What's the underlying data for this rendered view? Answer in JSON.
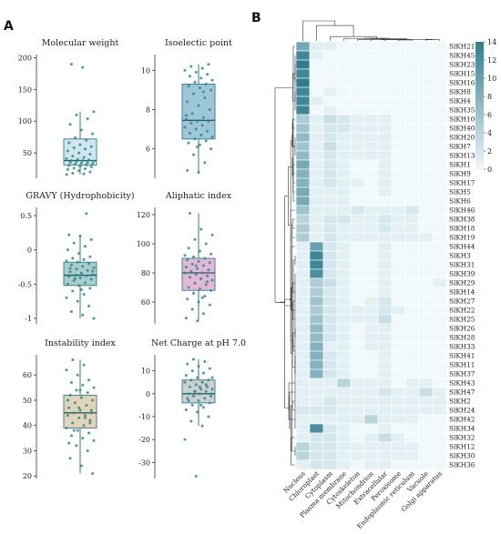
{
  "panels": {
    "a": "A",
    "b": "B"
  },
  "chart_data": [
    {
      "type": "box",
      "title": "Molecular weight",
      "ylim": [
        10,
        205
      ],
      "yticks": [
        50,
        100,
        150,
        200
      ],
      "box": {
        "q1": 31,
        "median": 38,
        "q3": 72,
        "whisker_low": 16,
        "whisker_high": 115,
        "fill": "#cfe6ef"
      },
      "points": [
        16,
        17,
        18,
        20,
        22,
        24,
        25,
        26,
        28,
        29,
        30,
        31,
        32,
        33,
        34,
        35,
        35,
        36,
        37,
        38,
        38,
        39,
        40,
        41,
        43,
        45,
        48,
        50,
        53,
        56,
        58,
        60,
        63,
        66,
        70,
        74,
        80,
        86,
        95,
        104,
        110,
        115,
        185,
        190
      ]
    },
    {
      "type": "box",
      "title": "Isoelectic point",
      "ylim": [
        4.5,
        10.8
      ],
      "yticks": [
        6,
        8,
        10
      ],
      "box": {
        "q1": 6.5,
        "median": 7.45,
        "q3": 9.3,
        "whisker_low": 4.8,
        "whisker_high": 10.3,
        "fill": "#9fc6d8"
      },
      "points": [
        4.8,
        4.9,
        5.3,
        5.7,
        6.0,
        6.2,
        6.3,
        6.4,
        6.5,
        6.6,
        6.7,
        6.8,
        6.9,
        7.0,
        7.1,
        7.2,
        7.3,
        7.4,
        7.4,
        7.5,
        7.6,
        7.8,
        8.0,
        8.2,
        8.4,
        8.6,
        8.8,
        9.0,
        9.1,
        9.2,
        9.3,
        9.4,
        9.5,
        9.6,
        9.7,
        9.8,
        9.9,
        10.0,
        10.1,
        10.2,
        10.3,
        6.1,
        7.7,
        8.9
      ]
    },
    {
      "type": "box",
      "title": "GRAVY (Hydrophobicity)",
      "ylim": [
        -1.08,
        0.62
      ],
      "yticks": [
        -1.0,
        -0.5,
        0.0,
        0.5
      ],
      "box": {
        "q1": -0.52,
        "median": -0.37,
        "q3": -0.18,
        "whisker_low": -1.0,
        "whisker_high": 0.22,
        "fill": "#aacdcc"
      },
      "points": [
        -1.0,
        -0.95,
        -0.9,
        -0.82,
        -0.75,
        -0.7,
        -0.65,
        -0.6,
        -0.56,
        -0.52,
        -0.5,
        -0.48,
        -0.45,
        -0.43,
        -0.41,
        -0.39,
        -0.38,
        -0.37,
        -0.36,
        -0.34,
        -0.32,
        -0.3,
        -0.28,
        -0.26,
        -0.24,
        -0.22,
        -0.2,
        -0.18,
        -0.16,
        -0.14,
        -0.12,
        -0.1,
        -0.05,
        0.0,
        0.05,
        0.1,
        0.15,
        0.2,
        0.22,
        0.53,
        -0.42,
        -0.31,
        -0.58,
        -0.27
      ]
    },
    {
      "type": "box",
      "title": "Aliphatic index",
      "ylim": [
        45,
        125
      ],
      "yticks": [
        60,
        80,
        100,
        120
      ],
      "box": {
        "q1": 68,
        "median": 80,
        "q3": 90,
        "whisker_low": 47,
        "whisker_high": 121,
        "fill": "#e3b8d6"
      },
      "points": [
        47,
        49,
        52,
        55,
        58,
        60,
        62,
        64,
        66,
        68,
        69,
        70,
        72,
        73,
        75,
        76,
        77,
        78,
        79,
        80,
        80,
        81,
        82,
        83,
        84,
        85,
        86,
        87,
        88,
        89,
        90,
        91,
        93,
        95,
        97,
        100,
        103,
        106,
        110,
        121,
        74,
        85,
        92,
        63
      ]
    },
    {
      "type": "box",
      "title": "Instability index",
      "ylim": [
        19,
        68
      ],
      "yticks": [
        20,
        30,
        40,
        50,
        60
      ],
      "box": {
        "q1": 39,
        "median": 45,
        "q3": 52,
        "whisker_low": 21,
        "whisker_high": 66,
        "fill": "#e3d3b8"
      },
      "points": [
        21,
        24,
        27,
        30,
        32,
        34,
        35,
        36,
        37,
        38,
        39,
        40,
        41,
        42,
        43,
        44,
        44,
        45,
        45,
        46,
        47,
        48,
        49,
        50,
        51,
        52,
        53,
        54,
        55,
        56,
        57,
        58,
        60,
        62,
        64,
        66,
        41,
        47,
        50,
        43,
        38,
        46,
        54,
        33
      ]
    },
    {
      "type": "box",
      "title": "Net Charge at pH 7.0",
      "ylim": [
        -37,
        17
      ],
      "yticks": [
        -30,
        -20,
        -10,
        0,
        10
      ],
      "box": {
        "q1": -4,
        "median": 0,
        "q3": 6,
        "whisker_low": -14,
        "whisker_high": 15,
        "fill": "#cdd0d0"
      },
      "points": [
        -36,
        -20,
        -14,
        -12,
        -10,
        -8,
        -7,
        -6,
        -5,
        -4,
        -3,
        -2,
        -2,
        -1,
        0,
        0,
        0,
        1,
        1,
        2,
        2,
        3,
        3,
        4,
        5,
        5,
        6,
        6,
        7,
        8,
        9,
        10,
        11,
        12,
        13,
        14,
        15,
        -1,
        3,
        -3,
        4,
        1,
        7,
        -5
      ]
    },
    {
      "type": "heatmap",
      "colorbar": {
        "ticks": [
          0,
          2,
          4,
          6,
          8,
          10,
          12,
          14
        ],
        "min": 0,
        "max": 14,
        "low_color": "#f0f8fb",
        "high_color": "#2f7e90"
      },
      "columns": [
        "Nucleus",
        "Chloroplast",
        "Cytoplasm",
        "Plasma membrane",
        "Cytoskeleton",
        "Mitochondrion",
        "Extracellular",
        "Peroxisome",
        "Endoplasmic reticulum",
        "Vacuole",
        "Golgi apparatus"
      ],
      "rows": [
        "SlKH21",
        "SlKH45",
        "SlKH23",
        "SlKH15",
        "SlKH16",
        "SlKH8",
        "SlKH4",
        "SlKH35",
        "SlKH10",
        "SlKH40",
        "SlKH20",
        "SlKH7",
        "SlKH13",
        "SlKH1",
        "SlKH9",
        "SlKH17",
        "SlKH5",
        "SlKH6",
        "SlKH46",
        "SlKH38",
        "SlKH18",
        "SlKH19",
        "SlKH44",
        "SlKH3",
        "SlKH31",
        "SlKH39",
        "SlKH29",
        "SlKH14",
        "SlKH27",
        "SlKH22",
        "SlKH25",
        "SlKH26",
        "SlKH28",
        "SlKH33",
        "SlKH41",
        "SlKH11",
        "SlKH37",
        "SlKH43",
        "SlKH47",
        "SlKH2",
        "SlKH24",
        "SlKH42",
        "SlKH34",
        "SlKH32",
        "SlKH12",
        "SlKH30",
        "SlKH36"
      ],
      "values": [
        [
          9,
          1,
          1,
          0,
          0,
          0,
          0,
          0,
          0,
          0,
          0
        ],
        [
          13,
          1,
          0,
          0,
          0,
          0,
          0,
          0,
          0,
          0,
          0
        ],
        [
          14,
          0,
          0,
          0,
          0,
          0,
          0,
          0,
          0,
          0,
          0
        ],
        [
          13,
          0,
          0,
          0,
          0,
          0,
          0,
          0,
          0,
          0,
          0
        ],
        [
          14,
          0,
          0,
          0,
          0,
          0,
          0,
          0,
          0,
          0,
          0
        ],
        [
          13,
          0,
          1,
          0,
          0,
          0,
          0,
          0,
          0,
          0,
          0
        ],
        [
          13,
          1,
          0,
          0,
          0,
          0,
          0,
          0,
          0,
          0,
          0
        ],
        [
          13,
          0,
          1,
          0,
          0,
          0,
          0,
          0,
          0,
          0,
          0
        ],
        [
          5,
          1,
          3,
          2,
          1,
          1,
          1,
          0,
          0,
          0,
          0
        ],
        [
          6,
          1,
          2,
          2,
          1,
          1,
          1,
          0,
          0,
          0,
          0
        ],
        [
          7,
          1,
          2,
          1,
          1,
          1,
          1,
          0,
          0,
          0,
          0
        ],
        [
          6,
          1,
          3,
          1,
          1,
          1,
          1,
          0,
          0,
          0,
          0
        ],
        [
          7,
          1,
          2,
          1,
          1,
          1,
          1,
          0,
          0,
          0,
          0
        ],
        [
          9,
          1,
          2,
          1,
          0,
          0,
          1,
          0,
          0,
          0,
          0
        ],
        [
          8,
          1,
          2,
          1,
          0,
          0,
          1,
          0,
          0,
          0,
          0
        ],
        [
          8,
          1,
          2,
          1,
          1,
          0,
          1,
          0,
          0,
          0,
          0
        ],
        [
          9,
          1,
          1,
          1,
          0,
          0,
          1,
          0,
          0,
          0,
          0
        ],
        [
          9,
          1,
          1,
          1,
          0,
          0,
          0,
          0,
          0,
          0,
          0
        ],
        [
          6,
          1,
          1,
          1,
          2,
          1,
          1,
          1,
          2,
          0,
          0
        ],
        [
          4,
          1,
          2,
          2,
          1,
          1,
          2,
          1,
          1,
          0,
          0
        ],
        [
          5,
          1,
          2,
          1,
          1,
          1,
          2,
          1,
          1,
          0,
          0
        ],
        [
          5,
          1,
          2,
          1,
          1,
          1,
          1,
          1,
          1,
          1,
          0
        ],
        [
          1,
          10,
          2,
          1,
          0,
          0,
          1,
          0,
          0,
          0,
          0
        ],
        [
          1,
          13,
          2,
          1,
          0,
          0,
          1,
          0,
          0,
          0,
          0
        ],
        [
          1,
          13,
          2,
          1,
          0,
          0,
          1,
          0,
          0,
          0,
          0
        ],
        [
          1,
          12,
          2,
          1,
          0,
          0,
          1,
          0,
          0,
          0,
          0
        ],
        [
          1,
          5,
          3,
          1,
          0,
          0,
          1,
          0,
          0,
          0,
          1
        ],
        [
          1,
          5,
          2,
          1,
          0,
          0,
          1,
          0,
          0,
          0,
          0
        ],
        [
          1,
          6,
          2,
          1,
          0,
          1,
          2,
          0,
          0,
          0,
          0
        ],
        [
          1,
          5,
          2,
          1,
          1,
          1,
          2,
          1,
          0,
          0,
          0
        ],
        [
          1,
          6,
          2,
          1,
          1,
          1,
          3,
          0,
          0,
          0,
          0
        ],
        [
          1,
          7,
          2,
          1,
          0,
          1,
          1,
          0,
          0,
          0,
          0
        ],
        [
          1,
          7,
          2,
          1,
          0,
          1,
          1,
          0,
          0,
          0,
          0
        ],
        [
          1,
          8,
          1,
          1,
          0,
          1,
          1,
          0,
          0,
          0,
          0
        ],
        [
          1,
          8,
          2,
          1,
          0,
          0,
          1,
          0,
          0,
          0,
          0
        ],
        [
          1,
          8,
          2,
          1,
          0,
          0,
          1,
          0,
          0,
          0,
          0
        ],
        [
          1,
          8,
          2,
          1,
          0,
          0,
          1,
          0,
          0,
          0,
          0
        ],
        [
          1,
          1,
          1,
          4,
          1,
          1,
          1,
          0,
          1,
          1,
          0
        ],
        [
          1,
          1,
          1,
          1,
          1,
          1,
          2,
          1,
          1,
          3,
          1
        ],
        [
          1,
          1,
          2,
          1,
          1,
          1,
          1,
          1,
          1,
          1,
          1
        ],
        [
          2,
          2,
          2,
          1,
          1,
          1,
          1,
          1,
          1,
          1,
          1
        ],
        [
          1,
          1,
          1,
          1,
          1,
          4,
          1,
          1,
          1,
          0,
          0
        ],
        [
          1,
          12,
          2,
          1,
          0,
          0,
          1,
          0,
          0,
          0,
          0
        ],
        [
          1,
          2,
          2,
          1,
          0,
          1,
          3,
          1,
          0,
          0,
          0
        ],
        [
          4,
          2,
          2,
          1,
          1,
          1,
          1,
          1,
          1,
          0,
          0
        ],
        [
          4,
          2,
          2,
          1,
          1,
          1,
          1,
          1,
          1,
          0,
          0
        ],
        [
          1,
          2,
          2,
          1,
          0,
          1,
          1,
          0,
          0,
          0,
          0
        ]
      ]
    }
  ]
}
